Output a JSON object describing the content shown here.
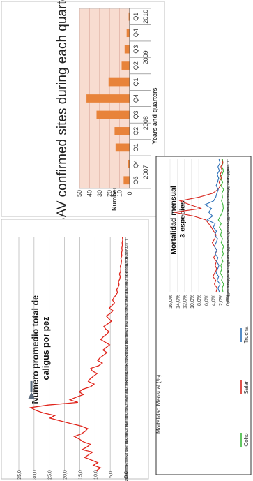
{
  "chart_data": [
    {
      "type": "bar",
      "title": "ISAV confirmed sites during each quarter",
      "xlabel": "Years and quarters",
      "ylabel": "Number of confirmed sites",
      "ylim": [
        0,
        50
      ],
      "yticks": [
        0,
        10,
        20,
        30,
        40,
        50
      ],
      "categories": [
        "Q3",
        "Q4",
        "Q1",
        "Q2",
        "Q3",
        "Q4",
        "Q1",
        "Q2",
        "Q3",
        "Q4",
        "Q1"
      ],
      "years": [
        {
          "label": "2007",
          "count": 2
        },
        {
          "label": "2008",
          "count": 4
        },
        {
          "label": "2009",
          "count": 4
        },
        {
          "label": "2010",
          "count": 1
        }
      ],
      "values": [
        6,
        2,
        14,
        15,
        33,
        43,
        21,
        8,
        5,
        3,
        1
      ],
      "colors": {
        "bar": "#E8833A",
        "plot_bg": "#F8DCD0",
        "grid": "#D9A89A"
      }
    },
    {
      "type": "line",
      "title": "Número promedio total de caligus por pez",
      "ylim": [
        0,
        35
      ],
      "yticks": [
        "0,0",
        "5,0",
        "10,0",
        "15,0",
        "20,0",
        "25,0",
        "30,0",
        "35,0"
      ],
      "xticks": [
        "15-06-2006",
        "15-08-2006",
        "15-10-2006",
        "15-12-2006",
        "15-02-2007",
        "15-04-2007",
        "15-06-2007",
        "15-08-2007",
        "15-10-2007",
        "15-12-2007",
        "15-02-2008",
        "15-04-2008",
        "15-06-2008",
        "15-08-2008",
        "15-10-2008",
        "15-12-2008",
        "15-02-2009",
        "15-04-2009",
        "15-06-2009",
        "15-08-2009",
        "15-10-2009",
        "15-12-2009",
        "15-02-2010",
        "15-04-2010",
        "15-06-2010",
        "15-08-2010",
        "15-10-2010",
        "15-12-2010",
        "15-02-2011"
      ],
      "series": [
        {
          "values": [
            9.5,
            8.2,
            10.5,
            9.1,
            11.2,
            13.4,
            12.1,
            10.8,
            14.2,
            12.6,
            11.5,
            13.9,
            15.1,
            16.8,
            14.5,
            13.2,
            12.4,
            14.6,
            18.3,
            21.5,
            24.8,
            23.2,
            27.1,
            29.5,
            31.1,
            25.4,
            15.6,
            18.2,
            16.1,
            13.8,
            15.2,
            14.1,
            11.4,
            10.3,
            12.2,
            11.6,
            10.5,
            9.3,
            10.9,
            11.4,
            8.8,
            7.6,
            9.1,
            8.4,
            7.2,
            6.1,
            7.4,
            6.3,
            5.2,
            6.7,
            8.1,
            7.3,
            6.2,
            5.4,
            6.5,
            7.1,
            5.8,
            4.6,
            5.5,
            6.3,
            4.9,
            4.1,
            5.3,
            4.4,
            3.6,
            4.2,
            3.8,
            3.1,
            2.6,
            2.9,
            2.4,
            2.1,
            2.3,
            1.9,
            1.7,
            2.0,
            1.6,
            1.5,
            1.7,
            1.4,
            1.3,
            1.5,
            1.2,
            1.3,
            1.1,
            1.2,
            1.0,
            1.1,
            0.9,
            1.0
          ]
        }
      ],
      "marker": "arrow"
    },
    {
      "type": "line",
      "title": "Mortalidad mensual 3 especies",
      "ylabel": "Mortalidad Mensual (%)",
      "ylim": [
        0,
        16
      ],
      "yticks": [
        "0,0%",
        "2,0%",
        "4,0%",
        "6,0%",
        "8,0%",
        "10,0%",
        "12,0%",
        "14,0%",
        "16,0%"
      ],
      "xticks": [
        "feb-03",
        "may-03",
        "ago-03",
        "nov-03",
        "feb-04",
        "may-04",
        "ago-04",
        "nov-04",
        "feb-05",
        "may-05",
        "ago-05",
        "nov-05",
        "feb-06",
        "may-06",
        "ago-06",
        "nov-06",
        "feb-07",
        "may-07",
        "ago-07",
        "nov-07",
        "feb-08",
        "may-08",
        "ago-08",
        "nov-08",
        "feb-09",
        "may-09",
        "ago-09",
        "nov-09",
        "feb-10",
        "may-10",
        "ago-10",
        "nov-10",
        "feb-11",
        "may-11",
        "ago-11",
        "nov-11"
      ],
      "series": [
        {
          "name": "Coho",
          "color": "#3CB83A",
          "values": [
            1.2,
            1.4,
            1.0,
            1.6,
            1.3,
            2.0,
            1.5,
            1.8,
            1.2,
            1.6,
            1.1,
            1.4,
            1.0,
            1.7,
            1.3,
            1.9,
            1.5,
            2.2,
            1.7,
            2.5,
            1.9,
            1.4,
            1.1,
            1.2,
            1.6,
            1.3,
            1.5,
            1.0,
            1.8,
            1.2,
            2.1,
            1.4,
            1.0,
            1.5,
            1.2,
            1.3
          ]
        },
        {
          "name": "Salar",
          "color": "#D7261E",
          "values": [
            3.1,
            2.8,
            3.6,
            3.2,
            4.0,
            3.5,
            2.9,
            3.4,
            3.0,
            3.8,
            3.3,
            2.9,
            3.6,
            4.2,
            3.5,
            3.1,
            3.8,
            4.4,
            5.2,
            6.0,
            9.5,
            14.8,
            7.2,
            10.5,
            13.2,
            7.8,
            4.1,
            2.6,
            1.9,
            2.3,
            1.6,
            2.0,
            1.4,
            1.8,
            1.2,
            1.5
          ]
        },
        {
          "name": "Trucha",
          "color": "#2A6FB8",
          "values": [
            2.2,
            2.6,
            2.0,
            2.8,
            2.4,
            3.1,
            2.7,
            2.3,
            3.0,
            2.6,
            3.4,
            2.9,
            3.6,
            3.1,
            2.7,
            3.5,
            3.0,
            3.9,
            3.4,
            5.6,
            4.1,
            5.2,
            4.4,
            6.2,
            3.8,
            3.2,
            2.9,
            2.5,
            3.1,
            2.7,
            2.4,
            2.8,
            2.2,
            2.6,
            2.0,
            2.3
          ]
        }
      ]
    }
  ]
}
